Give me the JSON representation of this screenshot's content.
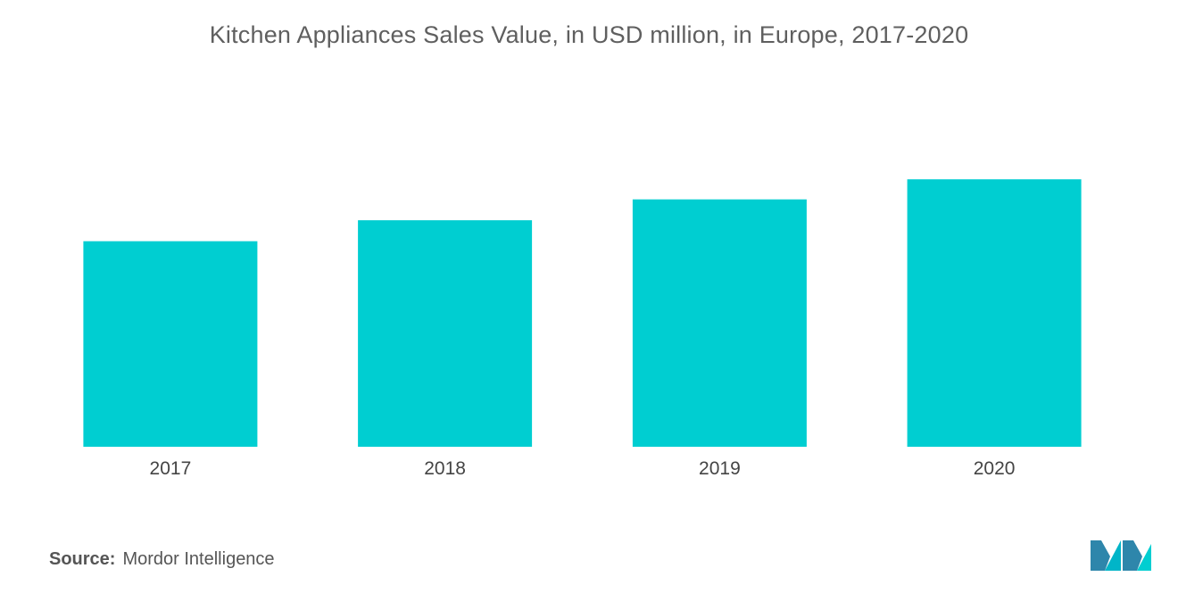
{
  "chart_data": {
    "type": "bar",
    "title": "Kitchen Appliances Sales Value, in USD million, in Europe, 2017-2020",
    "categories": [
      "2017",
      "2018",
      "2019",
      "2020"
    ],
    "values": [
      226,
      249,
      272,
      294
    ],
    "ylim": [
      0,
      300
    ],
    "xlabel": "",
    "ylabel": "",
    "grid": false,
    "bar_color": "#00CED1"
  },
  "source": {
    "label": "Source:",
    "text": "Mordor Intelligence"
  },
  "logo": {
    "icon": "mordor-intelligence-logo-icon",
    "colors": [
      "#2E86AB",
      "#00CED1"
    ]
  }
}
